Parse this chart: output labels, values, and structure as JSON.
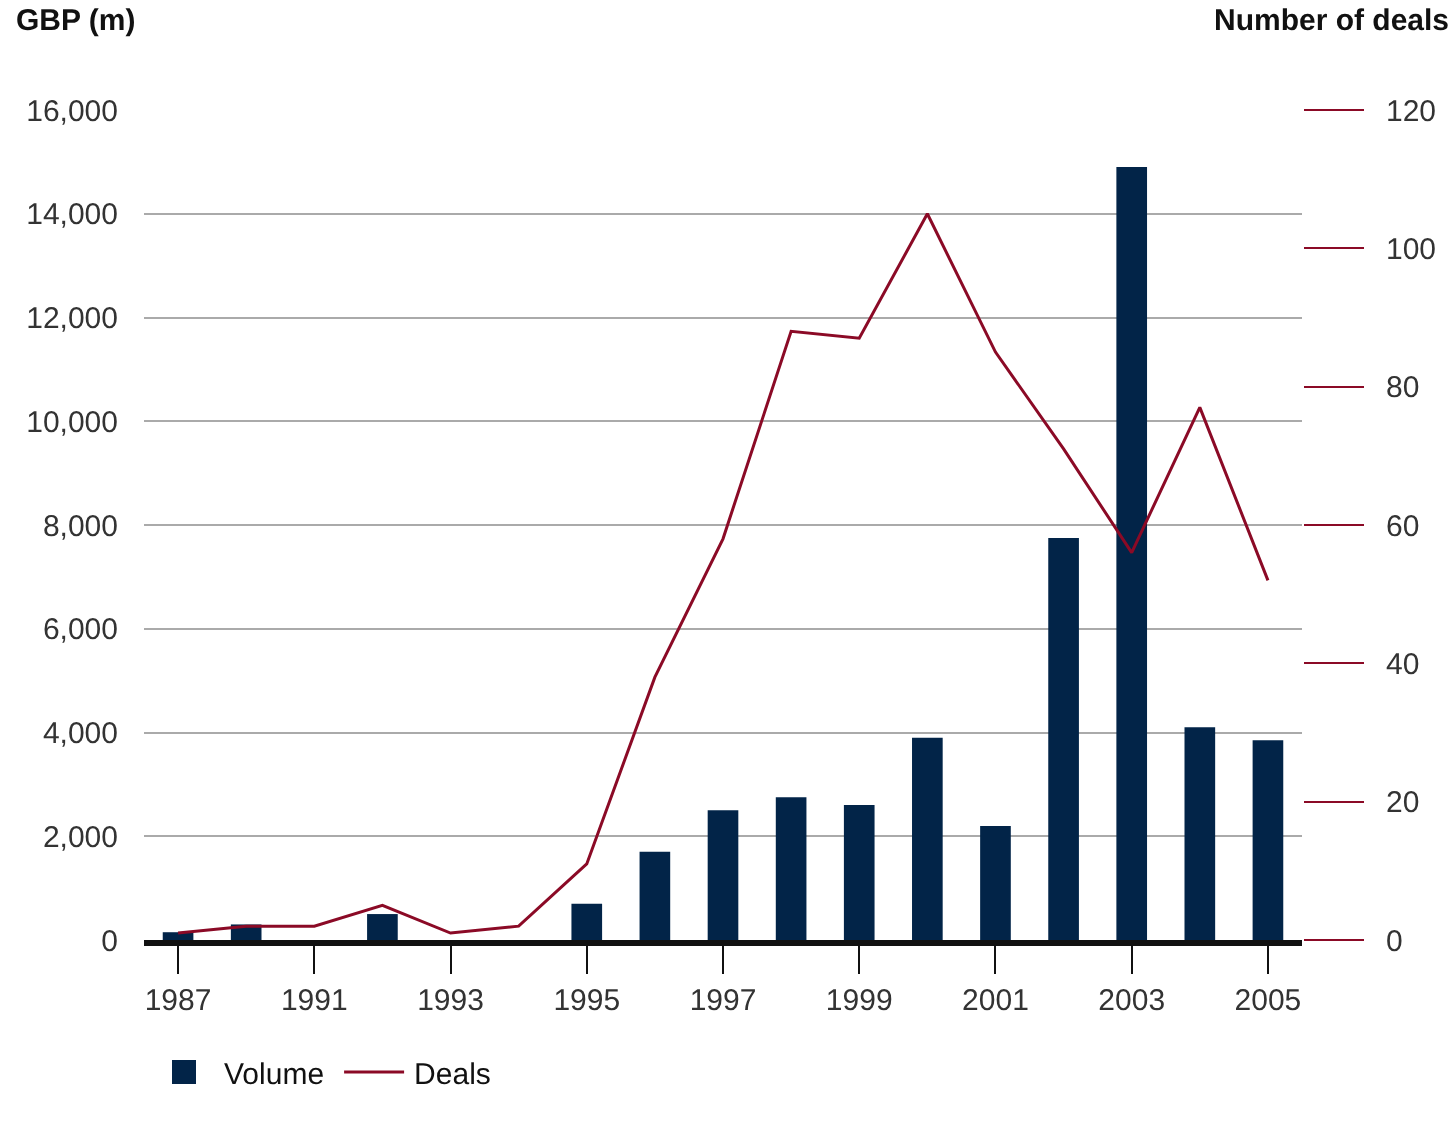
{
  "chart_data": {
    "type": "bar",
    "ylabel": "GBP (m)",
    "y2label": "Number of deals",
    "categories": [
      "1987",
      null,
      "1991",
      null,
      "1993",
      null,
      "1995",
      null,
      "1997",
      null,
      "1999",
      null,
      "2001",
      null,
      "2003",
      null,
      "2005"
    ],
    "series": [
      {
        "name": "Volume",
        "color": "#022448",
        "values": [
          150,
          300,
          null,
          500,
          null,
          null,
          700,
          1700,
          2500,
          2750,
          2600,
          3900,
          2200,
          7750,
          14900,
          4100,
          3850
        ]
      },
      {
        "name": "Deals",
        "type": "line",
        "axis": "y2",
        "color": "#8b0a26",
        "values": [
          1,
          2,
          2,
          5,
          1,
          2,
          11,
          38,
          58,
          88,
          87,
          105,
          85,
          71,
          56,
          77,
          52
        ]
      }
    ],
    "ylim": [
      0,
      16000
    ],
    "yticks": [
      {
        "value": 0,
        "label": "0"
      },
      {
        "value": 2000,
        "label": "2,000"
      },
      {
        "value": 4000,
        "label": "4,000"
      },
      {
        "value": 6000,
        "label": "6,000"
      },
      {
        "value": 8000,
        "label": "8,000"
      },
      {
        "value": 10000,
        "label": "10,000"
      },
      {
        "value": 12000,
        "label": "12,000"
      },
      {
        "value": 14000,
        "label": "14,000"
      },
      {
        "value": 16000,
        "label": "16,000"
      }
    ],
    "y2lim": [
      0,
      120
    ],
    "y2ticks": [
      0,
      20,
      40,
      60,
      80,
      100,
      120
    ],
    "grid": "y",
    "legend": "bottom left",
    "marker": "none",
    "line_style": "solid"
  }
}
